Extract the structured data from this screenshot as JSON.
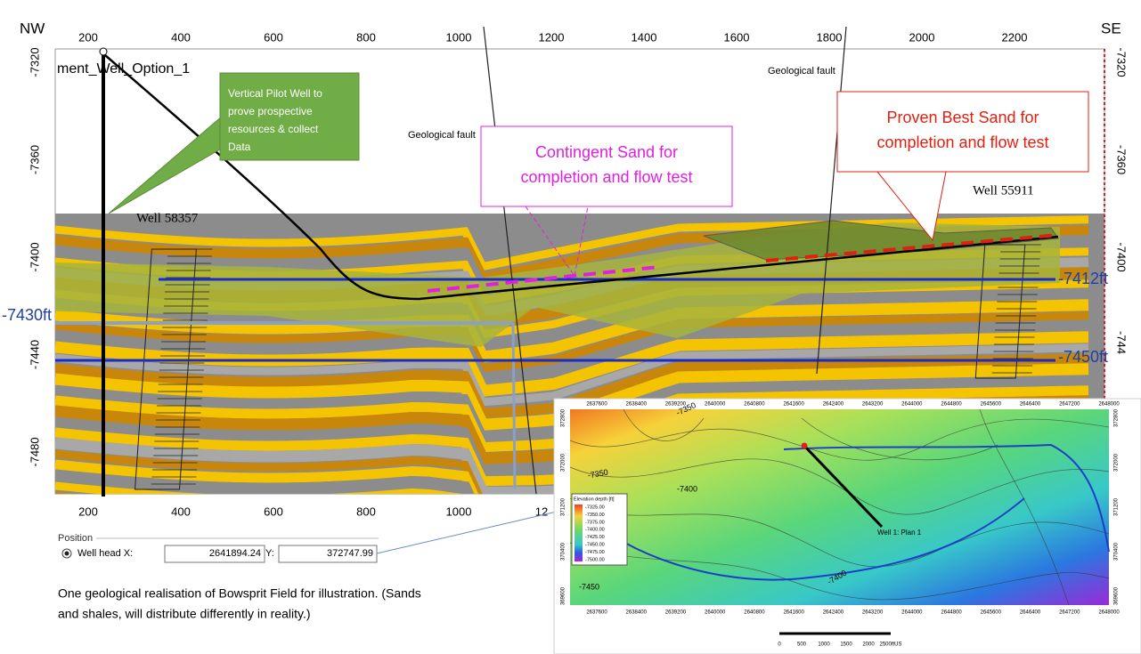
{
  "section": {
    "left_label": "NW",
    "right_label": "SE",
    "title": "ment_Well_Option_1",
    "x_ticks_top": [
      200,
      400,
      600,
      800,
      1000,
      1200,
      1400,
      1600,
      1800,
      2000,
      2200
    ],
    "x_ticks_bottom": [
      200,
      400,
      600,
      800,
      1000
    ],
    "x_tick_bottom_cut": "12",
    "y_ticks_left": [
      -7320,
      -7360,
      -7400,
      -7440,
      -7480
    ],
    "y_ticks_right": [
      -7320,
      -7360,
      -7400
    ],
    "y_tick_right_cut": "-744",
    "wells": [
      "Well 58357",
      "Well 55911"
    ],
    "faults": [
      "Geological fault",
      "Geological fault"
    ],
    "pilot_callout": [
      "Vertical Pilot Well to",
      "prove prospective",
      "resources & collect",
      "Data"
    ],
    "contingent_callout": [
      "Contingent Sand for",
      "completion and flow test"
    ],
    "proven_callout": [
      "Proven Best Sand for",
      "completion and flow test"
    ],
    "depth_markers": [
      "-7412ft",
      "-7430ft",
      "-7450ft"
    ]
  },
  "position": {
    "title": "Position",
    "x_label": "Well head X:",
    "x_value": "2641894.24",
    "y_label": "Y:",
    "y_value": "372747.99"
  },
  "caption": [
    "One geological realisation of Bowsprit Field for illustration. (Sands",
    "and shales, will distribute differently in reality.)"
  ],
  "map": {
    "x_ticks": [
      2637600,
      2638400,
      2639200,
      2640000,
      2640800,
      2641600,
      2642400,
      2643200,
      2644000,
      2644800,
      2645600,
      2646400,
      2647200,
      2648000
    ],
    "y_ticks": [
      372800,
      372000,
      371200,
      370400,
      369600
    ],
    "legend_title": "Elevation depth [ft]",
    "legend": [
      "-7325.00",
      "-7350.00",
      "-7375.00",
      "-7400.00",
      "-7425.00",
      "-7450.00",
      "-7475.00",
      "-7500.00"
    ],
    "contour_labels": [
      "-7350",
      "-7350",
      "-7400",
      "-7400",
      "-7450"
    ],
    "well_label": "Well 1: Plan 1",
    "scale": [
      "0",
      "500",
      "1000",
      "1500",
      "2000",
      "2500ftUS"
    ]
  }
}
